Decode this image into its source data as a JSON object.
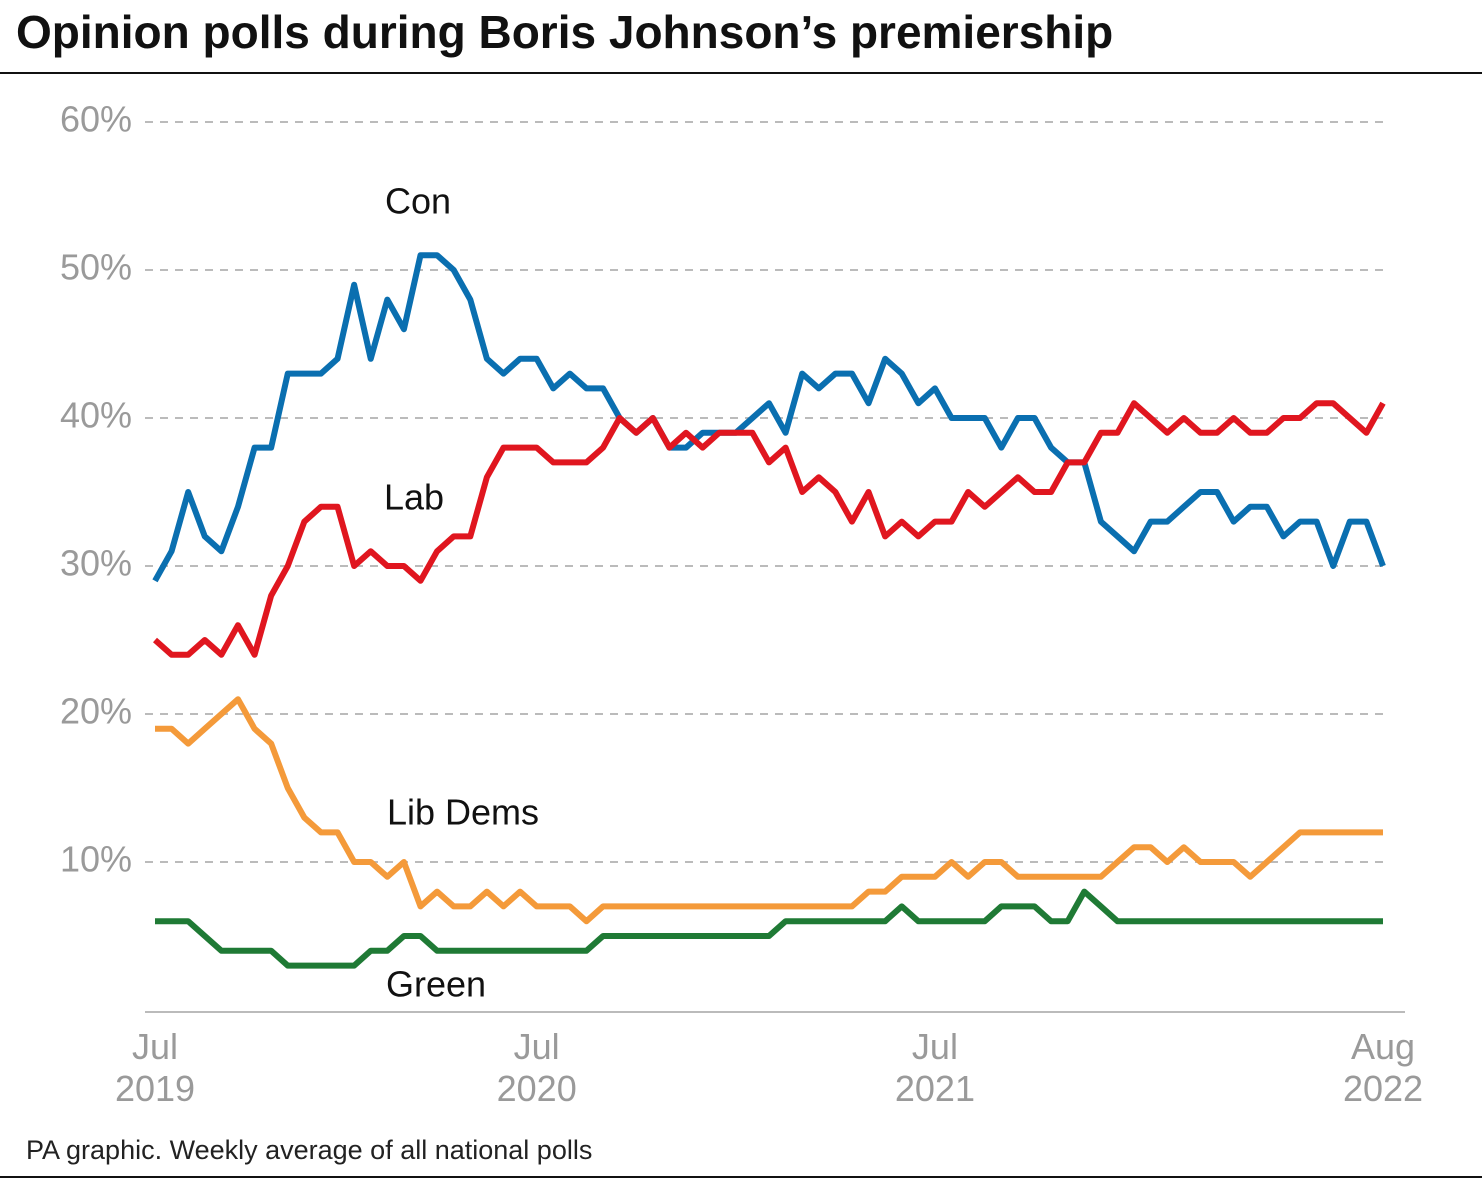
{
  "chart_data": {
    "type": "line",
    "title": "Opinion polls during Boris Johnson’s premiership",
    "note": "PA graphic. Weekly average of all national polls",
    "categories": [
      "Jul 2019",
      null,
      null,
      null,
      null,
      null,
      null,
      null,
      null,
      null,
      null,
      null,
      null,
      null,
      null,
      null,
      null,
      null,
      null,
      null,
      null,
      null,
      null,
      "Jul 2020",
      null,
      null,
      null,
      null,
      null,
      null,
      null,
      null,
      null,
      null,
      null,
      null,
      null,
      null,
      null,
      null,
      null,
      null,
      null,
      null,
      null,
      null,
      null,
      "Jul 2021",
      null,
      null,
      null,
      null,
      null,
      null,
      null,
      null,
      null,
      null,
      null,
      null,
      null,
      null,
      null,
      null,
      null,
      null,
      null,
      null,
      null,
      null,
      null,
      null,
      null,
      null,
      "Aug 2022"
    ],
    "series": [
      {
        "name": "Con",
        "color": "#0a6fb0",
        "values": [
          29,
          31,
          35,
          32,
          31,
          34,
          38,
          38,
          43,
          43,
          43,
          44,
          49,
          44,
          48,
          46,
          51,
          51,
          50,
          48,
          44,
          43,
          44,
          44,
          42,
          43,
          42,
          42,
          40,
          39,
          40,
          38,
          38,
          39,
          39,
          39,
          40,
          41,
          39,
          43,
          42,
          43,
          43,
          41,
          44,
          43,
          41,
          42,
          40,
          40,
          40,
          38,
          40,
          40,
          38,
          37,
          37,
          33,
          32,
          31,
          33,
          33,
          34,
          35,
          35,
          33,
          34,
          34,
          32,
          33,
          33,
          30,
          33,
          33,
          30
        ]
      },
      {
        "name": "Lab",
        "color": "#e0161f",
        "values": [
          25,
          24,
          24,
          25,
          24,
          26,
          24,
          28,
          30,
          33,
          34,
          34,
          30,
          31,
          30,
          30,
          29,
          31,
          32,
          32,
          36,
          38,
          38,
          38,
          37,
          37,
          37,
          38,
          40,
          39,
          40,
          38,
          39,
          38,
          39,
          39,
          39,
          37,
          38,
          35,
          36,
          35,
          33,
          35,
          32,
          33,
          32,
          33,
          33,
          35,
          34,
          35,
          36,
          35,
          35,
          37,
          37,
          39,
          39,
          41,
          40,
          39,
          40,
          39,
          39,
          40,
          39,
          39,
          40,
          40,
          41,
          41,
          40,
          39,
          41
        ]
      },
      {
        "name": "Lib Dems",
        "color": "#f49a3a",
        "values": [
          19,
          19,
          18,
          19,
          20,
          21,
          19,
          18,
          15,
          13,
          12,
          12,
          10,
          10,
          9,
          10,
          7,
          8,
          7,
          7,
          8,
          7,
          8,
          7,
          7,
          7,
          6,
          7,
          7,
          7,
          7,
          7,
          7,
          7,
          7,
          7,
          7,
          7,
          7,
          7,
          7,
          7,
          7,
          8,
          8,
          9,
          9,
          9,
          10,
          9,
          10,
          10,
          9,
          9,
          9,
          9,
          9,
          9,
          10,
          11,
          11,
          10,
          11,
          10,
          10,
          10,
          9,
          10,
          11,
          12,
          12,
          12,
          12,
          12,
          12
        ]
      },
      {
        "name": "Green",
        "color": "#1f7a35",
        "values": [
          6,
          6,
          6,
          5,
          4,
          4,
          4,
          4,
          3,
          3,
          3,
          3,
          3,
          4,
          4,
          5,
          5,
          4,
          4,
          4,
          4,
          4,
          4,
          4,
          4,
          4,
          4,
          5,
          5,
          5,
          5,
          5,
          5,
          5,
          5,
          5,
          5,
          5,
          6,
          6,
          6,
          6,
          6,
          6,
          6,
          7,
          6,
          6,
          6,
          6,
          6,
          7,
          7,
          7,
          6,
          6,
          8,
          7,
          6,
          6,
          6,
          6,
          6,
          6,
          6,
          6,
          6,
          6,
          6,
          6,
          6,
          6,
          6,
          6,
          6
        ]
      }
    ],
    "ylim": [
      0,
      60
    ],
    "yticks": [
      {
        "value": 10,
        "label": "10%"
      },
      {
        "value": 20,
        "label": "20%"
      },
      {
        "value": 30,
        "label": "30%"
      },
      {
        "value": 40,
        "label": "40%"
      },
      {
        "value": 50,
        "label": "50%"
      },
      {
        "value": 60,
        "label": "60%"
      }
    ],
    "grid": true
  }
}
